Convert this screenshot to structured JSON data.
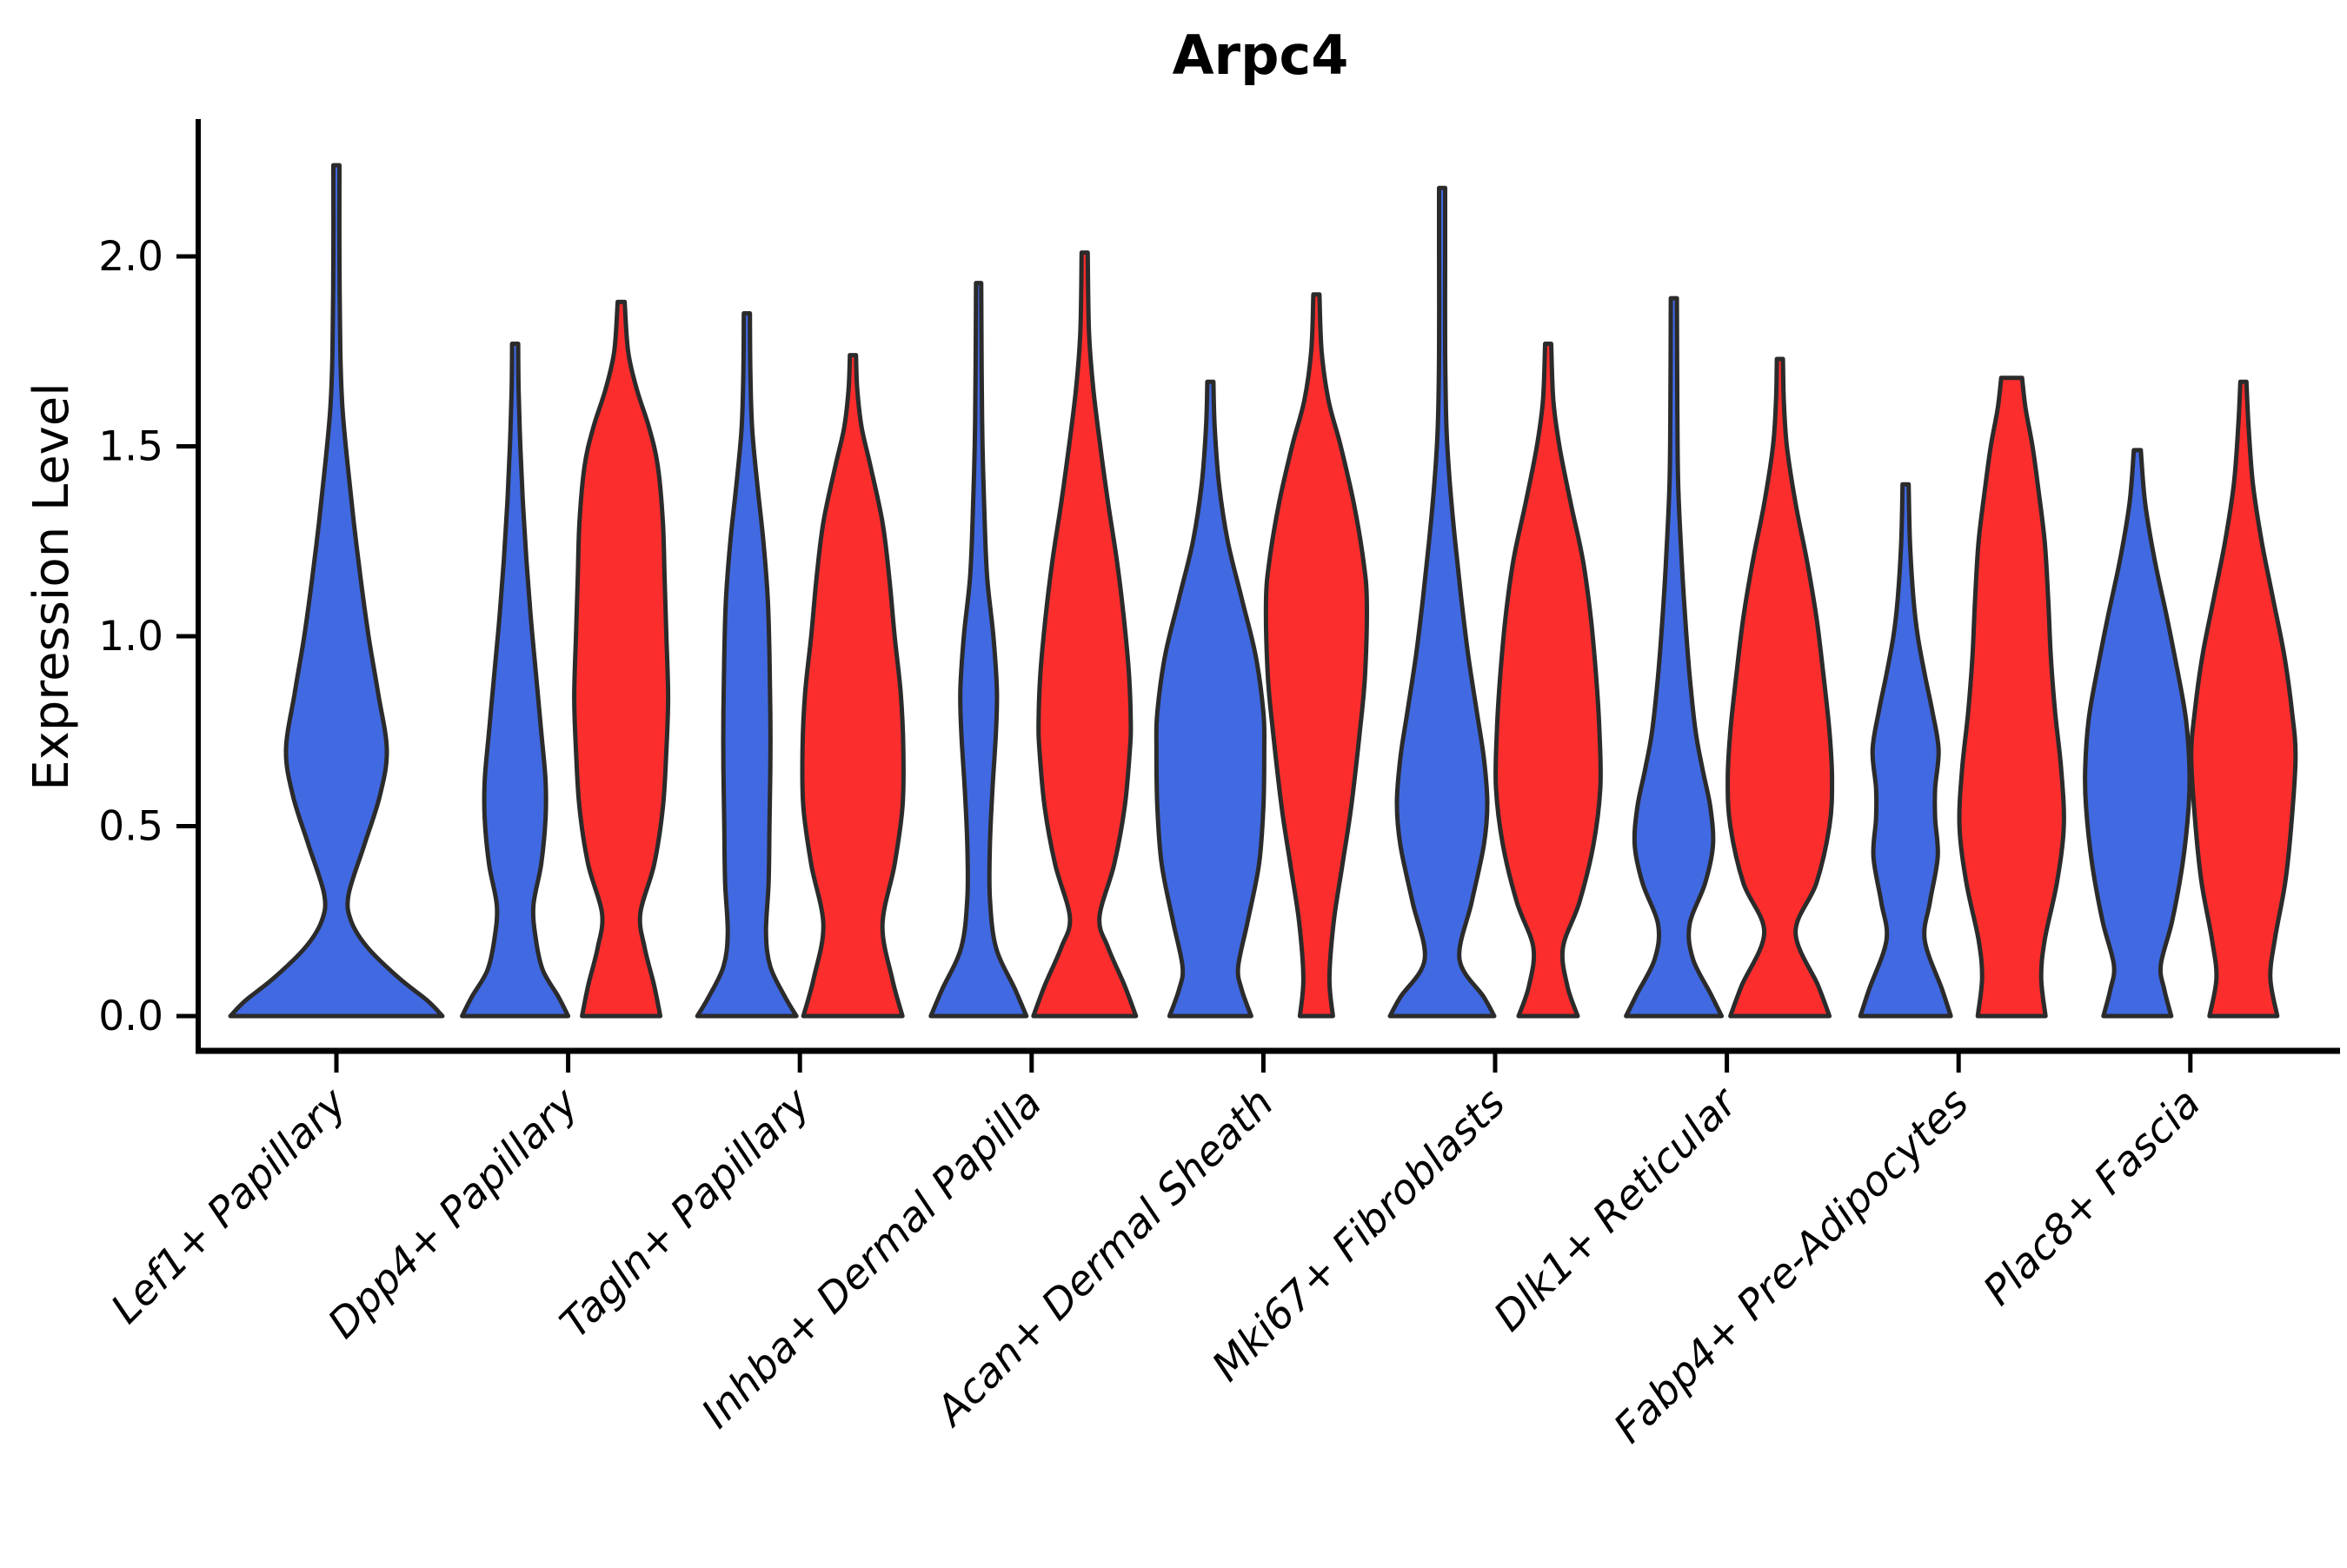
{
  "chart_data": {
    "type": "violin",
    "title": "Arpc4",
    "ylabel": "Expression Level",
    "xlabel": "",
    "grid": false,
    "legend": null,
    "ylim": [
      0,
      2.35
    ],
    "y_ticks": [
      {
        "value": 0.0,
        "label": "0.0"
      },
      {
        "value": 0.5,
        "label": "0.5"
      },
      {
        "value": 1.0,
        "label": "1.0"
      },
      {
        "value": 1.5,
        "label": "1.5"
      },
      {
        "value": 2.0,
        "label": "2.0"
      }
    ],
    "categories": [
      "Lef1+ Papillary",
      "Dpp4+ Papillary",
      "Tagln+ Papillary",
      "Inhba+ Dermal Papilla",
      "Acan+ Dermal Sheath",
      "Mki67+ Fibroblasts",
      "Dlk1+ Reticular",
      "Fabp4+ Pre-Adipocytes",
      "Plac8+ Fascia"
    ],
    "colors": {
      "blue": "#4169E1",
      "red": "#FC2D2D",
      "outline": "#2B2B2B",
      "axis": "#000000"
    },
    "violins": [
      {
        "category": 0,
        "color": "blue",
        "offset": 0,
        "peak_expression": 2.24,
        "profile": [
          [
            0,
            122
          ],
          [
            0.04,
            105
          ],
          [
            0.1,
            72
          ],
          [
            0.18,
            36
          ],
          [
            0.25,
            17
          ],
          [
            0.32,
            14
          ],
          [
            0.45,
            32
          ],
          [
            0.58,
            50
          ],
          [
            0.7,
            58
          ],
          [
            0.85,
            48
          ],
          [
            1.0,
            37
          ],
          [
            1.15,
            28
          ],
          [
            1.3,
            20
          ],
          [
            1.45,
            13
          ],
          [
            1.6,
            7
          ],
          [
            1.75,
            4.5
          ],
          [
            2.0,
            3.5
          ],
          [
            2.24,
            3.5
          ]
        ]
      },
      {
        "category": 1,
        "color": "blue",
        "offset": -61,
        "peak_expression": 1.77,
        "profile": [
          [
            0,
            61
          ],
          [
            0.05,
            50
          ],
          [
            0.12,
            32
          ],
          [
            0.2,
            24
          ],
          [
            0.29,
            21
          ],
          [
            0.4,
            30
          ],
          [
            0.52,
            35
          ],
          [
            0.62,
            35
          ],
          [
            0.75,
            30
          ],
          [
            0.9,
            24
          ],
          [
            1.05,
            18
          ],
          [
            1.2,
            13
          ],
          [
            1.35,
            9
          ],
          [
            1.5,
            6
          ],
          [
            1.65,
            4
          ],
          [
            1.77,
            3.5
          ]
        ]
      },
      {
        "category": 1,
        "color": "red",
        "offset": 61,
        "peak_expression": 1.88,
        "profile": [
          [
            0,
            45
          ],
          [
            0.08,
            38
          ],
          [
            0.18,
            27
          ],
          [
            0.27,
            22
          ],
          [
            0.4,
            38
          ],
          [
            0.55,
            48
          ],
          [
            0.7,
            52
          ],
          [
            0.84,
            54
          ],
          [
            1.0,
            52
          ],
          [
            1.15,
            50
          ],
          [
            1.3,
            48
          ],
          [
            1.45,
            42
          ],
          [
            1.55,
            32
          ],
          [
            1.65,
            18
          ],
          [
            1.75,
            8
          ],
          [
            1.88,
            4
          ]
        ]
      },
      {
        "category": 2,
        "color": "blue",
        "offset": -61,
        "peak_expression": 1.85,
        "profile": [
          [
            0,
            57
          ],
          [
            0.05,
            44
          ],
          [
            0.13,
            27
          ],
          [
            0.22,
            22
          ],
          [
            0.35,
            25
          ],
          [
            0.5,
            26
          ],
          [
            0.65,
            27
          ],
          [
            0.8,
            27
          ],
          [
            0.95,
            26
          ],
          [
            1.1,
            24
          ],
          [
            1.25,
            19
          ],
          [
            1.4,
            12
          ],
          [
            1.55,
            6
          ],
          [
            1.7,
            4
          ],
          [
            1.85,
            3.5
          ]
        ]
      },
      {
        "category": 2,
        "color": "red",
        "offset": 61,
        "peak_expression": 1.74,
        "profile": [
          [
            0,
            57
          ],
          [
            0.1,
            45
          ],
          [
            0.24,
            34
          ],
          [
            0.4,
            48
          ],
          [
            0.55,
            57
          ],
          [
            0.7,
            58
          ],
          [
            0.85,
            55
          ],
          [
            1.0,
            48
          ],
          [
            1.15,
            42
          ],
          [
            1.3,
            34
          ],
          [
            1.45,
            20
          ],
          [
            1.55,
            10
          ],
          [
            1.65,
            5
          ],
          [
            1.74,
            3.5
          ]
        ]
      },
      {
        "category": 3,
        "color": "blue",
        "offset": -61,
        "peak_expression": 1.93,
        "profile": [
          [
            0,
            55
          ],
          [
            0.07,
            42
          ],
          [
            0.18,
            20
          ],
          [
            0.31,
            13
          ],
          [
            0.45,
            13
          ],
          [
            0.6,
            16
          ],
          [
            0.75,
            20
          ],
          [
            0.86,
            21
          ],
          [
            1.0,
            17
          ],
          [
            1.15,
            10
          ],
          [
            1.3,
            7
          ],
          [
            1.5,
            4.5
          ],
          [
            1.7,
            3.5
          ],
          [
            1.93,
            3
          ]
        ]
      },
      {
        "category": 3,
        "color": "red",
        "offset": 61,
        "peak_expression": 2.01,
        "profile": [
          [
            0,
            59
          ],
          [
            0.08,
            46
          ],
          [
            0.18,
            27
          ],
          [
            0.26,
            17
          ],
          [
            0.4,
            34
          ],
          [
            0.55,
            46
          ],
          [
            0.7,
            52
          ],
          [
            0.78,
            53
          ],
          [
            0.9,
            51
          ],
          [
            1.05,
            45
          ],
          [
            1.2,
            37
          ],
          [
            1.35,
            27
          ],
          [
            1.5,
            18
          ],
          [
            1.65,
            10
          ],
          [
            1.8,
            5
          ],
          [
            2.01,
            3.5
          ]
        ]
      },
      {
        "category": 4,
        "color": "blue",
        "offset": -61,
        "peak_expression": 1.67,
        "profile": [
          [
            0,
            47
          ],
          [
            0.07,
            36
          ],
          [
            0.13,
            32
          ],
          [
            0.25,
            43
          ],
          [
            0.4,
            56
          ],
          [
            0.55,
            61
          ],
          [
            0.7,
            62
          ],
          [
            0.8,
            61
          ],
          [
            0.95,
            52
          ],
          [
            1.1,
            36
          ],
          [
            1.25,
            20
          ],
          [
            1.4,
            10
          ],
          [
            1.55,
            5
          ],
          [
            1.67,
            3.5
          ]
        ]
      },
      {
        "category": 4,
        "color": "red",
        "offset": 61,
        "peak_expression": 1.9,
        "profile": [
          [
            0,
            19
          ],
          [
            0.1,
            15
          ],
          [
            0.25,
            20
          ],
          [
            0.4,
            30
          ],
          [
            0.55,
            40
          ],
          [
            0.75,
            50
          ],
          [
            0.9,
            56
          ],
          [
            1.09,
            58
          ],
          [
            1.2,
            54
          ],
          [
            1.35,
            43
          ],
          [
            1.5,
            28
          ],
          [
            1.62,
            14
          ],
          [
            1.75,
            6
          ],
          [
            1.9,
            3.5
          ]
        ]
      },
      {
        "category": 5,
        "color": "blue",
        "offset": -61,
        "peak_expression": 2.18,
        "profile": [
          [
            0,
            60
          ],
          [
            0.05,
            48
          ],
          [
            0.15,
            20
          ],
          [
            0.3,
            34
          ],
          [
            0.45,
            48
          ],
          [
            0.56,
            52
          ],
          [
            0.68,
            48
          ],
          [
            0.8,
            40
          ],
          [
            0.95,
            30
          ],
          [
            1.1,
            22
          ],
          [
            1.25,
            15
          ],
          [
            1.4,
            9
          ],
          [
            1.55,
            5
          ],
          [
            1.75,
            3.5
          ],
          [
            2.0,
            3.5
          ],
          [
            2.18,
            3.5
          ]
        ]
      },
      {
        "category": 5,
        "color": "red",
        "offset": 61,
        "peak_expression": 1.77,
        "profile": [
          [
            0,
            34
          ],
          [
            0.08,
            22
          ],
          [
            0.18,
            17
          ],
          [
            0.3,
            36
          ],
          [
            0.45,
            52
          ],
          [
            0.6,
            60
          ],
          [
            0.75,
            59
          ],
          [
            0.9,
            55
          ],
          [
            1.05,
            49
          ],
          [
            1.2,
            40
          ],
          [
            1.35,
            26
          ],
          [
            1.5,
            13
          ],
          [
            1.62,
            6
          ],
          [
            1.77,
            3.5
          ]
        ]
      },
      {
        "category": 6,
        "color": "blue",
        "offset": -61,
        "peak_expression": 1.89,
        "profile": [
          [
            0,
            55
          ],
          [
            0.06,
            42
          ],
          [
            0.15,
            22
          ],
          [
            0.24,
            18
          ],
          [
            0.35,
            36
          ],
          [
            0.45,
            45
          ],
          [
            0.55,
            42
          ],
          [
            0.65,
            33
          ],
          [
            0.75,
            25
          ],
          [
            0.9,
            18
          ],
          [
            1.05,
            13
          ],
          [
            1.2,
            9
          ],
          [
            1.4,
            5
          ],
          [
            1.6,
            4
          ],
          [
            1.89,
            3.5
          ]
        ]
      },
      {
        "category": 6,
        "color": "red",
        "offset": 61,
        "peak_expression": 1.73,
        "profile": [
          [
            0,
            57
          ],
          [
            0.08,
            44
          ],
          [
            0.22,
            18
          ],
          [
            0.35,
            42
          ],
          [
            0.5,
            57
          ],
          [
            0.62,
            60
          ],
          [
            0.75,
            57
          ],
          [
            0.9,
            50
          ],
          [
            1.05,
            42
          ],
          [
            1.2,
            31
          ],
          [
            1.35,
            18
          ],
          [
            1.5,
            8
          ],
          [
            1.62,
            4.5
          ],
          [
            1.73,
            3.5
          ]
        ]
      },
      {
        "category": 7,
        "color": "blue",
        "offset": -61,
        "peak_expression": 1.4,
        "profile": [
          [
            0,
            52
          ],
          [
            0.07,
            42
          ],
          [
            0.2,
            22
          ],
          [
            0.3,
            28
          ],
          [
            0.42,
            37
          ],
          [
            0.52,
            34
          ],
          [
            0.6,
            34
          ],
          [
            0.7,
            38
          ],
          [
            0.8,
            31
          ],
          [
            0.9,
            22
          ],
          [
            1.0,
            14
          ],
          [
            1.1,
            9
          ],
          [
            1.25,
            5
          ],
          [
            1.4,
            3.5
          ]
        ]
      },
      {
        "category": 7,
        "color": "red",
        "offset": 61,
        "peak_expression": 1.68,
        "profile": [
          [
            0,
            39
          ],
          [
            0.1,
            34
          ],
          [
            0.2,
            38
          ],
          [
            0.35,
            52
          ],
          [
            0.5,
            60
          ],
          [
            0.65,
            57
          ],
          [
            0.8,
            50
          ],
          [
            0.95,
            45
          ],
          [
            1.1,
            42
          ],
          [
            1.25,
            38
          ],
          [
            1.4,
            30
          ],
          [
            1.5,
            24
          ],
          [
            1.6,
            16
          ],
          [
            1.68,
            12
          ]
        ]
      },
      {
        "category": 8,
        "color": "blue",
        "offset": -61,
        "peak_expression": 1.49,
        "profile": [
          [
            0,
            39
          ],
          [
            0.07,
            31
          ],
          [
            0.135,
            27
          ],
          [
            0.25,
            40
          ],
          [
            0.4,
            52
          ],
          [
            0.55,
            59
          ],
          [
            0.65,
            60
          ],
          [
            0.78,
            56
          ],
          [
            0.9,
            47
          ],
          [
            1.05,
            34
          ],
          [
            1.2,
            20
          ],
          [
            1.35,
            9
          ],
          [
            1.49,
            4
          ]
        ]
      },
      {
        "category": 8,
        "color": "red",
        "offset": 61,
        "peak_expression": 1.67,
        "profile": [
          [
            0,
            39
          ],
          [
            0.1,
            31
          ],
          [
            0.2,
            36
          ],
          [
            0.35,
            48
          ],
          [
            0.5,
            55
          ],
          [
            0.68,
            60
          ],
          [
            0.8,
            56
          ],
          [
            0.95,
            47
          ],
          [
            1.1,
            34
          ],
          [
            1.25,
            21
          ],
          [
            1.4,
            11
          ],
          [
            1.55,
            6
          ],
          [
            1.67,
            3.5
          ]
        ]
      }
    ]
  }
}
